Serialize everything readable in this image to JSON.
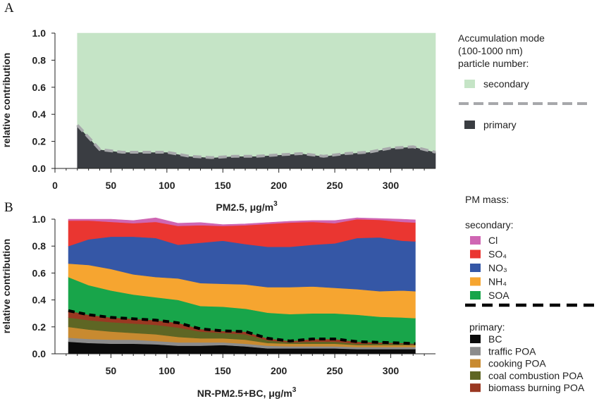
{
  "chart_data": [
    {
      "panel": "A",
      "type": "area",
      "xlabel": "PM2.5, μg/m",
      "xlabel_sup": "3",
      "ylabel": "relative contribution",
      "xlim": [
        0,
        340
      ],
      "ylim": [
        0,
        1.0
      ],
      "xticks": [
        "0",
        "50",
        "100",
        "150",
        "200",
        "250",
        "300"
      ],
      "yticks": [
        "0.0",
        "0.2",
        "0.4",
        "0.6",
        "0.8",
        "1.0"
      ],
      "legend_title": [
        "Accumulation mode",
        "(100-1000 nm)",
        "particle number:"
      ],
      "x": [
        20,
        40,
        60,
        80,
        100,
        120,
        140,
        160,
        180,
        200,
        220,
        240,
        260,
        280,
        300,
        320,
        340
      ],
      "series": [
        {
          "name": "primary",
          "color": "#3a3d42",
          "values": [
            0.32,
            0.14,
            0.12,
            0.12,
            0.12,
            0.09,
            0.08,
            0.09,
            0.09,
            0.1,
            0.11,
            0.09,
            0.11,
            0.12,
            0.15,
            0.16,
            0.12
          ]
        },
        {
          "name": "secondary",
          "color": "#c5e4c6",
          "values": [
            0.68,
            0.86,
            0.88,
            0.88,
            0.88,
            0.91,
            0.92,
            0.91,
            0.91,
            0.9,
            0.89,
            0.91,
            0.89,
            0.88,
            0.85,
            0.84,
            0.88
          ]
        }
      ]
    },
    {
      "panel": "B",
      "type": "area",
      "xlabel": "NR-PM2.5+BC, μg/m",
      "xlabel_sup": "3",
      "ylabel": "relative contribution",
      "xlim": [
        0,
        340
      ],
      "ylim": [
        0,
        1.0
      ],
      "xticks": [
        "50",
        "100",
        "150",
        "200",
        "250",
        "300"
      ],
      "yticks": [
        "0.0",
        "0.2",
        "0.4",
        "0.6",
        "0.8",
        "1.0"
      ],
      "legend_title": "PM mass:",
      "secondary_title": "secondary:",
      "primary_title": "primary:",
      "x": [
        12,
        30,
        50,
        70,
        90,
        110,
        130,
        150,
        170,
        190,
        210,
        230,
        250,
        270,
        290,
        310,
        322
      ],
      "series": [
        {
          "name": "BC",
          "group": "primary",
          "color": "#0a0a0a",
          "values": [
            0.09,
            0.08,
            0.075,
            0.075,
            0.07,
            0.06,
            0.06,
            0.065,
            0.055,
            0.04,
            0.04,
            0.04,
            0.04,
            0.035,
            0.035,
            0.035,
            0.035
          ]
        },
        {
          "name": "traffic POA",
          "group": "primary",
          "color": "#8c8c8c",
          "values": [
            0.03,
            0.03,
            0.03,
            0.03,
            0.025,
            0.025,
            0.025,
            0.02,
            0.02,
            0.02,
            0.015,
            0.015,
            0.015,
            0.015,
            0.015,
            0.015,
            0.015
          ]
        },
        {
          "name": "cooking POA",
          "group": "primary",
          "color": "#c88a30",
          "values": [
            0.08,
            0.07,
            0.06,
            0.05,
            0.05,
            0.04,
            0.03,
            0.03,
            0.03,
            0.02,
            0.02,
            0.02,
            0.02,
            0.015,
            0.015,
            0.015,
            0.015
          ]
        },
        {
          "name": "coal combustion POA",
          "group": "primary",
          "color": "#5e6624",
          "values": [
            0.07,
            0.07,
            0.07,
            0.07,
            0.07,
            0.07,
            0.05,
            0.04,
            0.04,
            0.02,
            0.01,
            0.015,
            0.015,
            0.01,
            0.01,
            0.01,
            0.005
          ]
        },
        {
          "name": "biomass burning POA",
          "group": "primary",
          "color": "#9a3822",
          "values": [
            0.05,
            0.04,
            0.035,
            0.035,
            0.035,
            0.035,
            0.02,
            0.015,
            0.02,
            0.015,
            0.01,
            0.02,
            0.02,
            0.015,
            0.01,
            0.005,
            0.005
          ]
        },
        {
          "name": "SOA",
          "group": "secondary",
          "color": "#18a54a",
          "values": [
            0.25,
            0.22,
            0.2,
            0.18,
            0.17,
            0.17,
            0.17,
            0.18,
            0.17,
            0.19,
            0.2,
            0.19,
            0.19,
            0.2,
            0.19,
            0.19,
            0.19
          ]
        },
        {
          "name": "NH₄",
          "group": "secondary",
          "color": "#f6a530",
          "values": [
            0.1,
            0.15,
            0.16,
            0.15,
            0.15,
            0.16,
            0.17,
            0.17,
            0.18,
            0.19,
            0.2,
            0.2,
            0.19,
            0.19,
            0.19,
            0.2,
            0.2
          ]
        },
        {
          "name": "NO₃",
          "group": "secondary",
          "color": "#3557a6",
          "values": [
            0.13,
            0.19,
            0.24,
            0.28,
            0.29,
            0.25,
            0.3,
            0.32,
            0.3,
            0.3,
            0.3,
            0.31,
            0.33,
            0.38,
            0.4,
            0.37,
            0.37
          ]
        },
        {
          "name": "SO₄",
          "group": "secondary",
          "color": "#ea3631",
          "values": [
            0.19,
            0.14,
            0.11,
            0.1,
            0.12,
            0.14,
            0.13,
            0.11,
            0.14,
            0.17,
            0.18,
            0.17,
            0.15,
            0.14,
            0.13,
            0.14,
            0.14
          ]
        },
        {
          "name": "Cl",
          "group": "secondary",
          "color": "#cf66b3",
          "values": [
            0.01,
            0.01,
            0.02,
            0.02,
            0.03,
            0.02,
            0.02,
            0.01,
            0.01,
            0.01,
            0.01,
            0.01,
            0.02,
            0.01,
            0.01,
            0.02,
            0.02
          ]
        }
      ]
    }
  ]
}
